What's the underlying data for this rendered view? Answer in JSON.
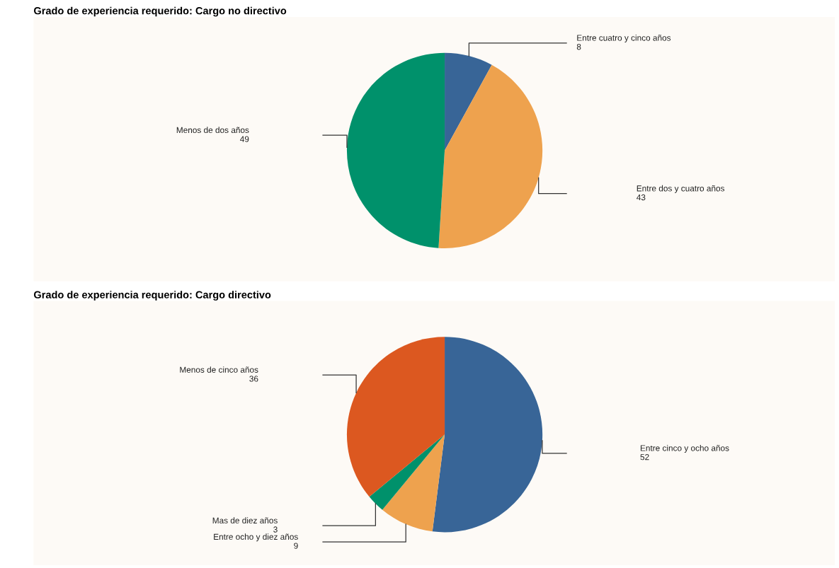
{
  "chart_data": [
    {
      "type": "pie",
      "title": "Grado de experiencia requerido: Cargo no directivo",
      "categories": [
        "Entre cuatro y cinco años",
        "Entre dos y cuatro años",
        "Menos de dos años"
      ],
      "values": [
        8,
        43,
        49
      ],
      "colors": [
        "#386597",
        "#eea24e",
        "#00916b"
      ],
      "data_labels": true
    },
    {
      "type": "pie",
      "title": "Grado de experiencia requerido: Cargo directivo",
      "categories": [
        "Entre cinco y ocho años",
        "Entre ocho y diez años",
        "Mas de diez años",
        "Menos de cinco años"
      ],
      "values": [
        52,
        9,
        3,
        36
      ],
      "colors": [
        "#386597",
        "#eea24e",
        "#00916b",
        "#dc5820"
      ],
      "data_labels": true
    }
  ]
}
